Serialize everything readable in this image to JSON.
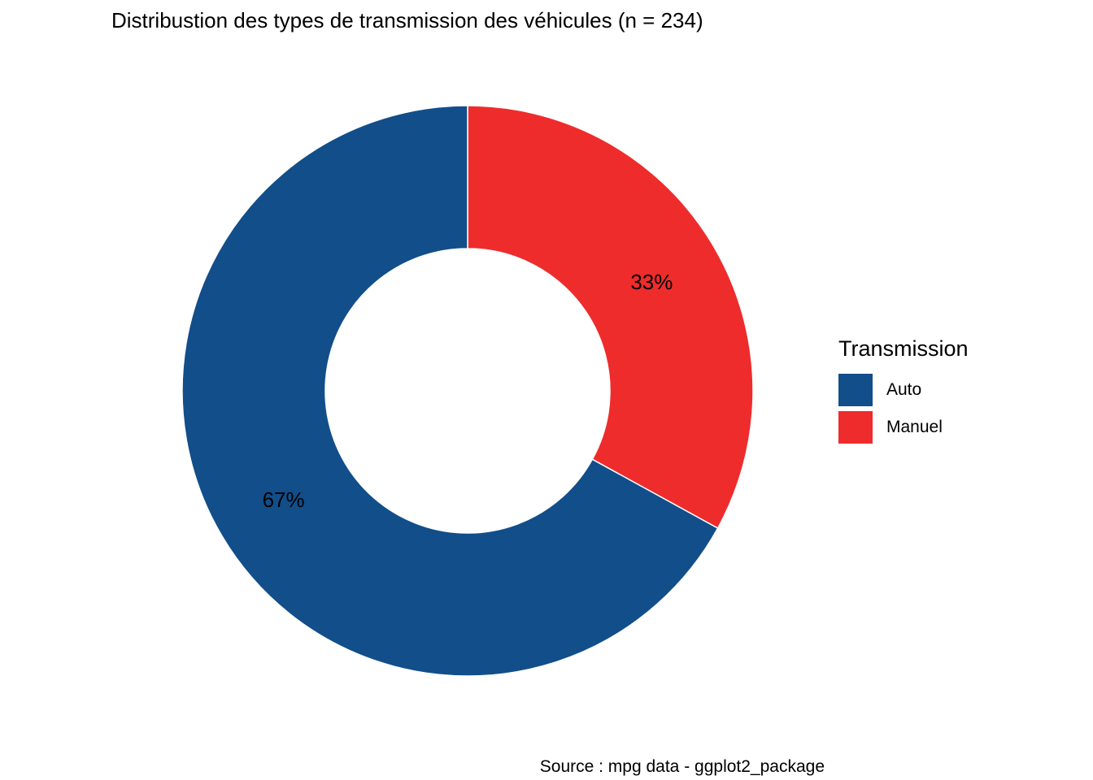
{
  "chart_data": {
    "type": "pie",
    "variant": "donut",
    "title": "Distribustion des types de transmission des véhicules (n = 234)",
    "caption": "Source : mpg data - ggplot2_package",
    "legend_title": "Transmission",
    "legend_position": "right",
    "slices": [
      {
        "label": "Auto",
        "value": 67,
        "display": "67%",
        "color": "#114E8A"
      },
      {
        "label": "Manuel",
        "value": 33,
        "display": "33%",
        "color": "#EE2C2C"
      }
    ],
    "n": 234
  }
}
